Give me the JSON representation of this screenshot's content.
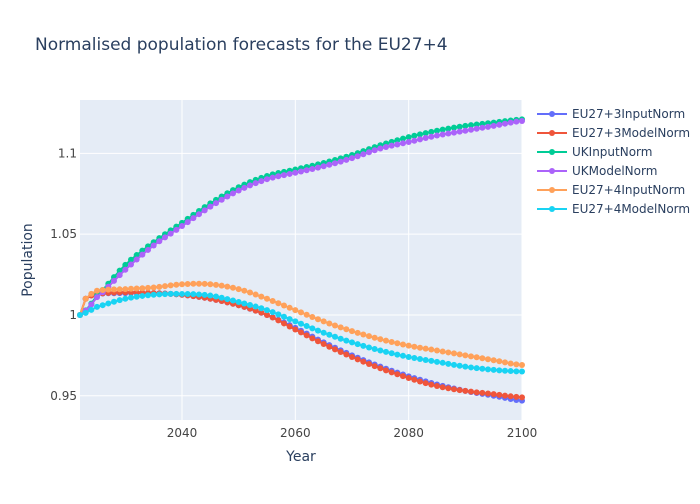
{
  "chart_data": {
    "type": "line",
    "title": "Normalised population forecasts for the EU27+4",
    "xlabel": "Year",
    "ylabel": "Population",
    "xlim": [
      2022,
      2100
    ],
    "ylim": [
      0.935,
      1.133
    ],
    "x_ticks": [
      2040,
      2060,
      2080,
      2100
    ],
    "y_ticks": [
      0.95,
      1.0,
      1.05,
      1.1
    ],
    "x_tick_labels": [
      "2040",
      "2060",
      "2080",
      "2100"
    ],
    "y_tick_labels": [
      "0.95",
      "1",
      "1.05",
      "1.1"
    ],
    "grid": true,
    "legend_position": "right",
    "x_start": 2022,
    "x_end": 2100,
    "x_step": 1,
    "series": [
      {
        "name": "EU27+3InputNorm",
        "color": "#636efa",
        "keypoints": [
          [
            2022,
            1.0
          ],
          [
            2023,
            1.01
          ],
          [
            2025,
            1.013
          ],
          [
            2030,
            1.0135
          ],
          [
            2035,
            1.0135
          ],
          [
            2040,
            1.0125
          ],
          [
            2045,
            1.01
          ],
          [
            2050,
            1.006
          ],
          [
            2055,
            1.0
          ],
          [
            2060,
            0.992
          ],
          [
            2065,
            0.983
          ],
          [
            2070,
            0.975
          ],
          [
            2075,
            0.968
          ],
          [
            2080,
            0.962
          ],
          [
            2085,
            0.957
          ],
          [
            2090,
            0.953
          ],
          [
            2095,
            0.95
          ],
          [
            2100,
            0.947
          ]
        ]
      },
      {
        "name": "EU27+3ModelNorm",
        "color": "#ef553b",
        "keypoints": [
          [
            2022,
            1.0
          ],
          [
            2023,
            1.01
          ],
          [
            2025,
            1.013
          ],
          [
            2030,
            1.014
          ],
          [
            2035,
            1.0135
          ],
          [
            2040,
            1.0125
          ],
          [
            2045,
            1.01
          ],
          [
            2050,
            1.006
          ],
          [
            2055,
            1.0
          ],
          [
            2060,
            0.991
          ],
          [
            2065,
            0.982
          ],
          [
            2070,
            0.974
          ],
          [
            2075,
            0.967
          ],
          [
            2080,
            0.961
          ],
          [
            2085,
            0.956
          ],
          [
            2090,
            0.953
          ],
          [
            2095,
            0.951
          ],
          [
            2100,
            0.949
          ]
        ]
      },
      {
        "name": "UKInputNorm",
        "color": "#00cc96",
        "keypoints": [
          [
            2022,
            1.0
          ],
          [
            2025,
            1.012
          ],
          [
            2030,
            1.031
          ],
          [
            2035,
            1.045
          ],
          [
            2040,
            1.057
          ],
          [
            2045,
            1.069
          ],
          [
            2050,
            1.079
          ],
          [
            2055,
            1.086
          ],
          [
            2060,
            1.09
          ],
          [
            2065,
            1.094
          ],
          [
            2070,
            1.099
          ],
          [
            2075,
            1.105
          ],
          [
            2080,
            1.11
          ],
          [
            2085,
            1.114
          ],
          [
            2090,
            1.117
          ],
          [
            2095,
            1.119
          ],
          [
            2100,
            1.121
          ]
        ]
      },
      {
        "name": "UKModelNorm",
        "color": "#ab63fa",
        "keypoints": [
          [
            2022,
            1.0
          ],
          [
            2025,
            1.011
          ],
          [
            2030,
            1.028
          ],
          [
            2035,
            1.043
          ],
          [
            2040,
            1.055
          ],
          [
            2045,
            1.067
          ],
          [
            2050,
            1.077
          ],
          [
            2055,
            1.084
          ],
          [
            2060,
            1.088
          ],
          [
            2065,
            1.092
          ],
          [
            2070,
            1.097
          ],
          [
            2075,
            1.103
          ],
          [
            2080,
            1.107
          ],
          [
            2085,
            1.111
          ],
          [
            2090,
            1.114
          ],
          [
            2095,
            1.117
          ],
          [
            2100,
            1.12
          ]
        ]
      },
      {
        "name": "EU27+4InputNorm",
        "color": "#ffa15a",
        "keypoints": [
          [
            2022,
            1.0
          ],
          [
            2023,
            1.01
          ],
          [
            2025,
            1.015
          ],
          [
            2030,
            1.016
          ],
          [
            2035,
            1.017
          ],
          [
            2040,
            1.019
          ],
          [
            2045,
            1.019
          ],
          [
            2050,
            1.016
          ],
          [
            2055,
            1.01
          ],
          [
            2060,
            1.003
          ],
          [
            2065,
            0.996
          ],
          [
            2070,
            0.99
          ],
          [
            2075,
            0.985
          ],
          [
            2080,
            0.981
          ],
          [
            2085,
            0.978
          ],
          [
            2090,
            0.975
          ],
          [
            2095,
            0.972
          ],
          [
            2100,
            0.969
          ]
        ]
      },
      {
        "name": "EU27+4ModelNorm",
        "color": "#19d3f3",
        "keypoints": [
          [
            2022,
            1.0
          ],
          [
            2025,
            1.005
          ],
          [
            2030,
            1.01
          ],
          [
            2035,
            1.0125
          ],
          [
            2040,
            1.013
          ],
          [
            2045,
            1.012
          ],
          [
            2050,
            1.008
          ],
          [
            2055,
            1.003
          ],
          [
            2060,
            0.996
          ],
          [
            2065,
            0.989
          ],
          [
            2070,
            0.983
          ],
          [
            2075,
            0.978
          ],
          [
            2080,
            0.974
          ],
          [
            2085,
            0.971
          ],
          [
            2090,
            0.968
          ],
          [
            2095,
            0.966
          ],
          [
            2100,
            0.965
          ]
        ]
      }
    ]
  },
  "colors": {
    "plot_background": "#e5ecf6",
    "grid": "#ffffff",
    "text": "#2a3f5f",
    "tick_text": "#444444"
  }
}
